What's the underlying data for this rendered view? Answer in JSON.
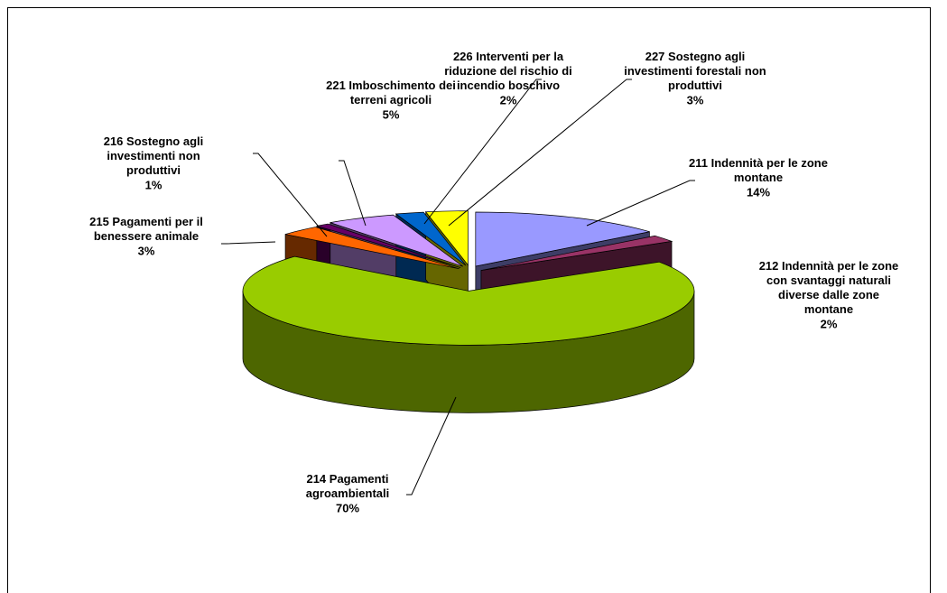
{
  "chart_data": {
    "type": "pie3d",
    "categories": [
      "211 Indennità per le zone montane",
      "212 Indennità per le zone con svantaggi naturali diverse dalle zone montane",
      "214 Pagamenti agroambientali",
      "215 Pagamenti per il benessere animale",
      "216 Sostegno agli investimenti non produttivi",
      "221 Imboschimento dei terreni agricoli",
      "226 Interventi per la riduzione del rischio di incendio boschivo",
      "227 Sostegno agli investimenti forestali non produttivi"
    ],
    "values": [
      14,
      2,
      70,
      3,
      1,
      5,
      2,
      3
    ],
    "value_labels": [
      "14%",
      "2%",
      "70%",
      "3%",
      "1%",
      "5%",
      "2%",
      "3%"
    ],
    "colors": [
      "#9999ff",
      "#993366",
      "#99cc00",
      "#ff6600",
      "#660066",
      "#cc99ff",
      "#0066cc",
      "#ffff00"
    ]
  }
}
